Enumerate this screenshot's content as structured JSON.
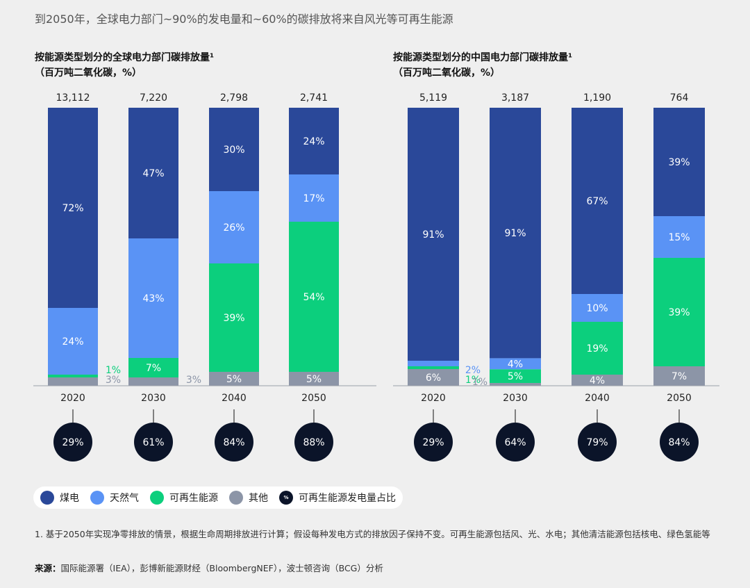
{
  "page_title": "到2050年，全球电力部门~90%的发电量和~60%的碳排放将来自风光等可再生能源",
  "colors": {
    "coal": "#2a4899",
    "gas": "#5a93f5",
    "renewable": "#0ccf7d",
    "other": "#8c95a7",
    "share_circle": "#0b1429"
  },
  "legend": {
    "coal": "煤电",
    "gas": "天然气",
    "renewable": "可再生能源",
    "other": "其他",
    "share_symbol": "%",
    "share": "可再生能源发电量占比"
  },
  "footnote": "1. 基于2050年实现净零排放的情景，根据生命周期排放进行计算；假设每种发电方式的排放因子保持不变。可再生能源包括风、光、水电；其他清洁能源包括核电、绿色氢能等",
  "source": {
    "label": "来源：",
    "text": "国际能源署（IEA），彭博新能源财经（BloombergNEF），波士顿咨询（BCG）分析"
  },
  "chart_data": [
    {
      "type": "bar",
      "stacked": "100%",
      "title": "按能源类型划分的全球电力部门碳排放量¹",
      "subtitle": "（百万吨二氧化碳，%）",
      "categories": [
        "2020",
        "2030",
        "2040",
        "2050"
      ],
      "totals": [
        "13,112",
        "7,220",
        "2,798",
        "2,741"
      ],
      "series": [
        {
          "name": "其他",
          "key": "other",
          "values": [
            3,
            3,
            5,
            5
          ],
          "labels": [
            "3%",
            "3%",
            "5%",
            "5%"
          ]
        },
        {
          "name": "可再生能源",
          "key": "renewable",
          "values": [
            1,
            7,
            39,
            54
          ],
          "labels": [
            "1%",
            "7%",
            "39%",
            "54%"
          ]
        },
        {
          "name": "天然气",
          "key": "gas",
          "values": [
            24,
            43,
            26,
            17
          ],
          "labels": [
            "24%",
            "43%",
            "26%",
            "17%"
          ]
        },
        {
          "name": "煤电",
          "key": "coal",
          "values": [
            72,
            47,
            30,
            24
          ],
          "labels": [
            "72%",
            "47%",
            "30%",
            "24%"
          ]
        }
      ],
      "renewable_generation_share": [
        "29%",
        "61%",
        "84%",
        "88%"
      ]
    },
    {
      "type": "bar",
      "stacked": "100%",
      "title": "按能源类型划分的中国电力部门碳排放量¹",
      "subtitle": "（百万吨二氧化碳，%）",
      "categories": [
        "2020",
        "2030",
        "2040",
        "2050"
      ],
      "totals": [
        "5,119",
        "3,187",
        "1,190",
        "764"
      ],
      "series": [
        {
          "name": "其他",
          "key": "other",
          "values": [
            6,
            1,
            4,
            7
          ],
          "labels": [
            "6%",
            "1%",
            "4%",
            "7%"
          ]
        },
        {
          "name": "可再生能源",
          "key": "renewable",
          "values": [
            1,
            5,
            19,
            39
          ],
          "labels": [
            "1%",
            "5%",
            "19%",
            "39%"
          ]
        },
        {
          "name": "天然气",
          "key": "gas",
          "values": [
            2,
            4,
            10,
            15
          ],
          "labels": [
            "2%",
            "4%",
            "10%",
            "15%"
          ]
        },
        {
          "name": "煤电",
          "key": "coal",
          "values": [
            91,
            91,
            67,
            39
          ],
          "labels": [
            "91%",
            "91%",
            "67%",
            "39%"
          ]
        }
      ],
      "renewable_generation_share": [
        "29%",
        "64%",
        "79%",
        "84%"
      ]
    }
  ]
}
